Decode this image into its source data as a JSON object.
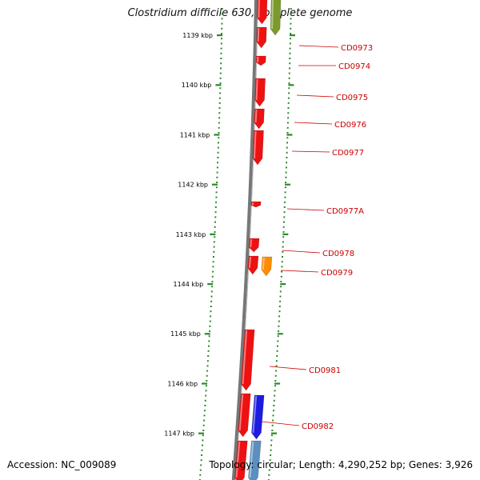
{
  "title": "Clostridium difficile 630, complete genome",
  "accession": "Accession: NC_009089",
  "summary": "Topology: circular; Length: 4,290,252 bp; Genes: 3,926",
  "colors": {
    "backbone": "#777777",
    "tick": "#2a8a2a",
    "label": "#cc0000",
    "gene_red": "#ee1111",
    "gene_orange": "#ff8c00",
    "gene_blue": "#1c1ce0",
    "gene_steel": "#5a8fc0",
    "gene_olive": "#7a9a2a"
  },
  "scale_labels": [
    "1139 kbp",
    "1140 kbp",
    "1141 kbp",
    "1142 kbp",
    "1143 kbp",
    "1144 kbp",
    "1145 kbp",
    "1146 kbp",
    "1147 kbp"
  ],
  "gene_labels": [
    "CD0973",
    "CD0974",
    "CD0975",
    "CD0976",
    "CD0977",
    "CD0977A",
    "CD0978",
    "CD0979",
    "CD0981",
    "CD0982"
  ]
}
